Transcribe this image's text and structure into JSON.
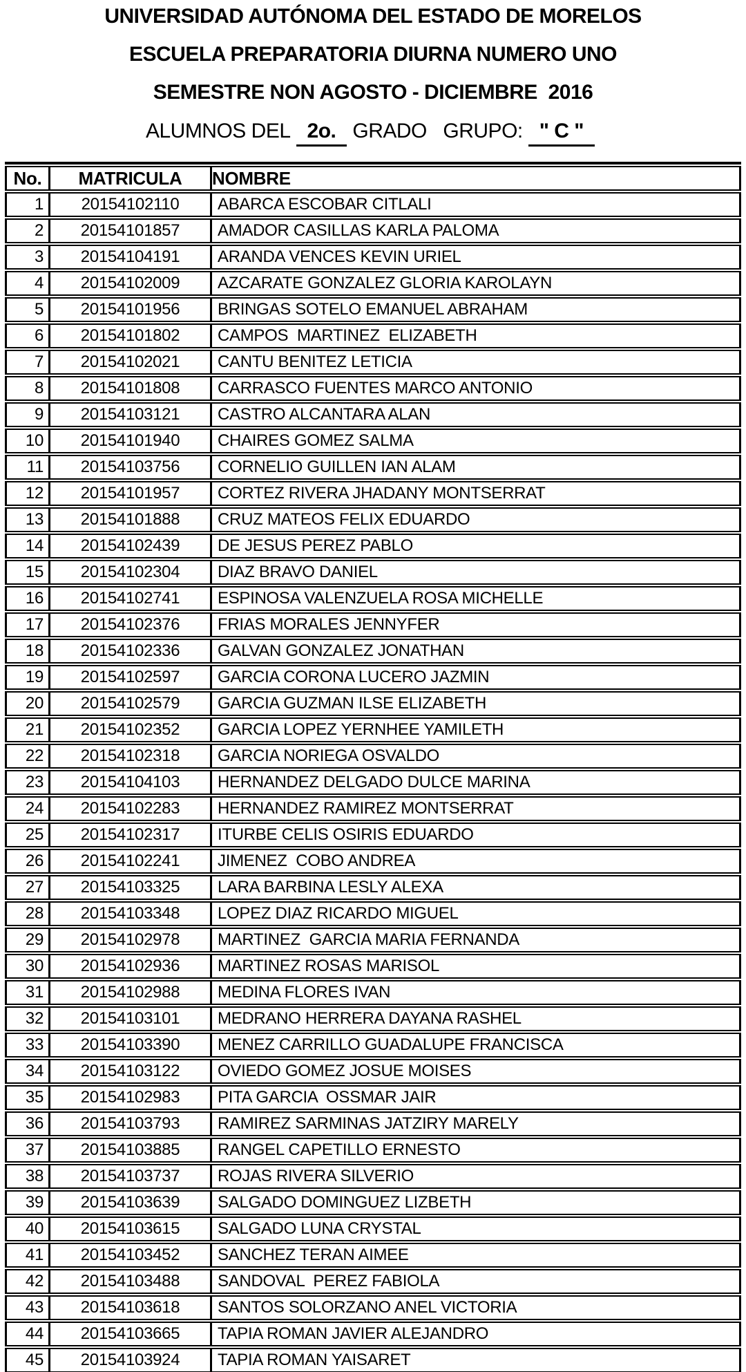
{
  "page": {
    "title1": "UNIVERSIDAD AUTÓNOMA DEL ESTADO DE MORELOS",
    "title2": "ESCUELA PREPARATORIA DIURNA NUMERO UNO",
    "title3": "SEMESTRE NON AGOSTO - DICIEMBRE  2016",
    "alumnos_prefix": "ALUMNOS DEL",
    "grade_value": "2o.",
    "grado_grupo_label": "GRADO   GRUPO:",
    "group_value": "\" C \""
  },
  "table": {
    "headers": {
      "no": "No.",
      "matricula": "MATRICULA",
      "nombre": "NOMBRE"
    },
    "rows": [
      {
        "no": "1",
        "matricula": "20154102110",
        "nombre": "ABARCA ESCOBAR CITLALI"
      },
      {
        "no": "2",
        "matricula": "20154101857",
        "nombre": "AMADOR CASILLAS KARLA PALOMA"
      },
      {
        "no": "3",
        "matricula": "20154104191",
        "nombre": "ARANDA VENCES KEVIN URIEL"
      },
      {
        "no": "4",
        "matricula": "20154102009",
        "nombre": "AZCARATE GONZALEZ GLORIA KAROLAYN"
      },
      {
        "no": "5",
        "matricula": "20154101956",
        "nombre": "BRINGAS SOTELO EMANUEL ABRAHAM"
      },
      {
        "no": "6",
        "matricula": "20154101802",
        "nombre": "CAMPOS  MARTINEZ  ELIZABETH"
      },
      {
        "no": "7",
        "matricula": "20154102021",
        "nombre": "CANTU BENITEZ LETICIA"
      },
      {
        "no": "8",
        "matricula": "20154101808",
        "nombre": "CARRASCO FUENTES MARCO ANTONIO"
      },
      {
        "no": "9",
        "matricula": "20154103121",
        "nombre": "CASTRO ALCANTARA ALAN"
      },
      {
        "no": "10",
        "matricula": "20154101940",
        "nombre": "CHAIRES GOMEZ SALMA"
      },
      {
        "no": "11",
        "matricula": "20154103756",
        "nombre": "CORNELIO GUILLEN IAN ALAM"
      },
      {
        "no": "12",
        "matricula": "20154101957",
        "nombre": "CORTEZ RIVERA JHADANY MONTSERRAT"
      },
      {
        "no": "13",
        "matricula": "20154101888",
        "nombre": "CRUZ MATEOS FELIX EDUARDO"
      },
      {
        "no": "14",
        "matricula": "20154102439",
        "nombre": "DE JESUS PEREZ PABLO"
      },
      {
        "no": "15",
        "matricula": "20154102304",
        "nombre": "DIAZ BRAVO DANIEL"
      },
      {
        "no": "16",
        "matricula": "20154102741",
        "nombre": "ESPINOSA VALENZUELA ROSA MICHELLE"
      },
      {
        "no": "17",
        "matricula": "20154102376",
        "nombre": "FRIAS MORALES JENNYFER"
      },
      {
        "no": "18",
        "matricula": "20154102336",
        "nombre": "GALVAN GONZALEZ JONATHAN"
      },
      {
        "no": "19",
        "matricula": "20154102597",
        "nombre": "GARCIA CORONA LUCERO JAZMIN"
      },
      {
        "no": "20",
        "matricula": "20154102579",
        "nombre": "GARCIA GUZMAN ILSE ELIZABETH"
      },
      {
        "no": "21",
        "matricula": "20154102352",
        "nombre": "GARCIA LOPEZ YERNHEE YAMILETH"
      },
      {
        "no": "22",
        "matricula": "20154102318",
        "nombre": "GARCIA NORIEGA OSVALDO"
      },
      {
        "no": "23",
        "matricula": "20154104103",
        "nombre": "HERNANDEZ DELGADO DULCE MARINA"
      },
      {
        "no": "24",
        "matricula": "20154102283",
        "nombre": "HERNANDEZ RAMIREZ MONTSERRAT"
      },
      {
        "no": "25",
        "matricula": "20154102317",
        "nombre": "ITURBE CELIS OSIRIS EDUARDO"
      },
      {
        "no": "26",
        "matricula": "20154102241",
        "nombre": "JIMENEZ  COBO ANDREA"
      },
      {
        "no": "27",
        "matricula": "20154103325",
        "nombre": "LARA BARBINA LESLY ALEXA"
      },
      {
        "no": "28",
        "matricula": "20154103348",
        "nombre": "LOPEZ DIAZ RICARDO MIGUEL"
      },
      {
        "no": "29",
        "matricula": "20154102978",
        "nombre": "MARTINEZ  GARCIA MARIA FERNANDA"
      },
      {
        "no": "30",
        "matricula": "20154102936",
        "nombre": "MARTINEZ ROSAS MARISOL"
      },
      {
        "no": "31",
        "matricula": "20154102988",
        "nombre": "MEDINA FLORES IVAN"
      },
      {
        "no": "32",
        "matricula": "20154103101",
        "nombre": "MEDRANO HERRERA DAYANA RASHEL"
      },
      {
        "no": "33",
        "matricula": "20154103390",
        "nombre": "MENEZ CARRILLO GUADALUPE FRANCISCA"
      },
      {
        "no": "34",
        "matricula": "20154103122",
        "nombre": "OVIEDO GOMEZ JOSUE MOISES"
      },
      {
        "no": "35",
        "matricula": "20154102983",
        "nombre": "PITA GARCIA  OSSMAR JAIR"
      },
      {
        "no": "36",
        "matricula": "20154103793",
        "nombre": "RAMIREZ SARMINAS JATZIRY MARELY"
      },
      {
        "no": "37",
        "matricula": "20154103885",
        "nombre": "RANGEL CAPETILLO ERNESTO"
      },
      {
        "no": "38",
        "matricula": "20154103737",
        "nombre": "ROJAS RIVERA SILVERIO"
      },
      {
        "no": "39",
        "matricula": "20154103639",
        "nombre": "SALGADO DOMINGUEZ LIZBETH"
      },
      {
        "no": "40",
        "matricula": "20154103615",
        "nombre": "SALGADO LUNA CRYSTAL"
      },
      {
        "no": "41",
        "matricula": "20154103452",
        "nombre": "SANCHEZ TERAN AIMEE"
      },
      {
        "no": "42",
        "matricula": "20154103488",
        "nombre": "SANDOVAL  PEREZ FABIOLA"
      },
      {
        "no": "43",
        "matricula": "20154103618",
        "nombre": "SANTOS SOLORZANO ANEL VICTORIA"
      },
      {
        "no": "44",
        "matricula": "20154103665",
        "nombre": "TAPIA ROMAN JAVIER ALEJANDRO"
      },
      {
        "no": "45",
        "matricula": "20154103924",
        "nombre": "TAPIA ROMAN YAISARET"
      }
    ]
  }
}
